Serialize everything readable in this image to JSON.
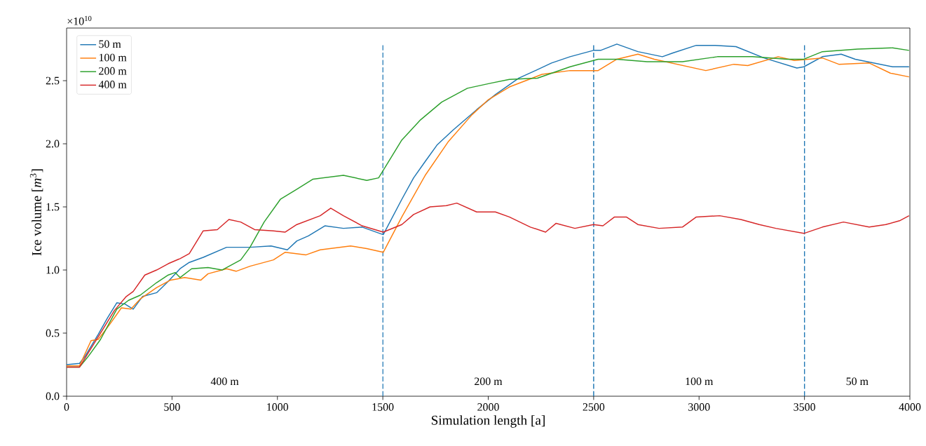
{
  "chart_data": {
    "type": "line",
    "xlabel": "Simulation length [a]",
    "ylabel": "Ice volume [*m*$^{3}$]",
    "xlim": [
      0,
      4000
    ],
    "ylim": [
      0,
      2.917
    ],
    "xticks": [
      0,
      500,
      1000,
      1500,
      2000,
      2500,
      3000,
      3500,
      4000
    ],
    "yticks": [
      {
        "value": 0,
        "label": "0.0"
      },
      {
        "value": 0.5,
        "label": "0.5"
      },
      {
        "value": 1.0,
        "label": "1.0"
      },
      {
        "value": 1.5,
        "label": "1.5"
      },
      {
        "value": 2.0,
        "label": "2.0"
      },
      {
        "value": 2.5,
        "label": "2.5"
      }
    ],
    "legend": "top left",
    "grid": false,
    "marker": "none",
    "line_style": "solid",
    "series": [
      {
        "name": "50 m",
        "color": "#1f77b4",
        "x": [
          0,
          61,
          89,
          150,
          194,
          238,
          277,
          316,
          360,
          427,
          482,
          538,
          582,
          648,
          759,
          870,
          970,
          1047,
          1092,
          1147,
          1225,
          1313,
          1402,
          1502,
          1590,
          1646,
          1701,
          1757,
          1834,
          1945,
          2034,
          2145,
          2211,
          2300,
          2388,
          2499,
          2533,
          2610,
          2710,
          2826,
          2876,
          2987,
          3076,
          3175,
          3308,
          3464,
          3497,
          3585,
          3674,
          3741,
          3918,
          3996
        ],
        "values": [
          0.25,
          0.26,
          0.32,
          0.49,
          0.62,
          0.74,
          0.73,
          0.69,
          0.79,
          0.82,
          0.91,
          1.01,
          1.06,
          1.1,
          1.18,
          1.18,
          1.19,
          1.16,
          1.23,
          1.27,
          1.35,
          1.33,
          1.34,
          1.28,
          1.56,
          1.73,
          1.86,
          1.99,
          2.11,
          2.27,
          2.39,
          2.52,
          2.57,
          2.64,
          2.69,
          2.74,
          2.74,
          2.79,
          2.73,
          2.69,
          2.72,
          2.78,
          2.78,
          2.77,
          2.68,
          2.6,
          2.61,
          2.69,
          2.71,
          2.67,
          2.61,
          2.61
        ]
      },
      {
        "name": "100 m",
        "color": "#ff7f0e",
        "x": [
          0,
          61,
          116,
          150,
          205,
          260,
          305,
          349,
          427,
          493,
          560,
          637,
          671,
          759,
          804,
          870,
          981,
          1036,
          1136,
          1203,
          1347,
          1424,
          1502,
          1590,
          1701,
          1812,
          1923,
          2001,
          2100,
          2255,
          2388,
          2521,
          2610,
          2710,
          2788,
          3032,
          3165,
          3231,
          3375,
          3452,
          3585,
          3663,
          3807,
          3907,
          3996
        ],
        "values": [
          0.24,
          0.24,
          0.44,
          0.45,
          0.57,
          0.7,
          0.69,
          0.77,
          0.86,
          0.92,
          0.94,
          0.92,
          0.97,
          1.01,
          0.99,
          1.03,
          1.08,
          1.14,
          1.12,
          1.16,
          1.19,
          1.17,
          1.14,
          1.42,
          1.75,
          2.02,
          2.23,
          2.35,
          2.45,
          2.55,
          2.58,
          2.58,
          2.67,
          2.71,
          2.67,
          2.58,
          2.63,
          2.62,
          2.69,
          2.66,
          2.68,
          2.63,
          2.64,
          2.56,
          2.53
        ]
      },
      {
        "name": "200 m",
        "color": "#2ca02c",
        "x": [
          0,
          61,
          105,
          161,
          238,
          294,
          349,
          427,
          482,
          515,
          538,
          593,
          671,
          737,
          826,
          870,
          937,
          1014,
          1092,
          1169,
          1313,
          1424,
          1480,
          1502,
          1590,
          1679,
          1779,
          1901,
          2012,
          2100,
          2233,
          2388,
          2521,
          2610,
          2754,
          2921,
          3087,
          3253,
          3419,
          3497,
          3585,
          3752,
          3918,
          3996
        ],
        "values": [
          0.23,
          0.23,
          0.32,
          0.45,
          0.69,
          0.76,
          0.8,
          0.9,
          0.96,
          0.98,
          0.94,
          1.01,
          1.02,
          1.0,
          1.08,
          1.18,
          1.38,
          1.56,
          1.64,
          1.72,
          1.75,
          1.71,
          1.73,
          1.79,
          2.03,
          2.19,
          2.33,
          2.44,
          2.48,
          2.51,
          2.52,
          2.61,
          2.67,
          2.67,
          2.65,
          2.65,
          2.69,
          2.69,
          2.67,
          2.67,
          2.73,
          2.75,
          2.76,
          2.74
        ]
      },
      {
        "name": "400 m",
        "color": "#d62728",
        "x": [
          0,
          61,
          172,
          227,
          283,
          316,
          371,
          427,
          482,
          538,
          582,
          648,
          715,
          770,
          826,
          892,
          981,
          1036,
          1092,
          1203,
          1253,
          1313,
          1402,
          1502,
          1590,
          1646,
          1724,
          1801,
          1851,
          1945,
          2034,
          2100,
          2200,
          2272,
          2322,
          2411,
          2499,
          2544,
          2599,
          2655,
          2710,
          2810,
          2921,
          2987,
          3098,
          3198,
          3286,
          3364,
          3497,
          3585,
          3685,
          3807,
          3885,
          3951,
          3996
        ],
        "values": [
          0.23,
          0.23,
          0.53,
          0.68,
          0.79,
          0.83,
          0.96,
          1.0,
          1.05,
          1.09,
          1.13,
          1.31,
          1.32,
          1.4,
          1.38,
          1.32,
          1.31,
          1.3,
          1.36,
          1.43,
          1.49,
          1.43,
          1.35,
          1.3,
          1.36,
          1.44,
          1.5,
          1.51,
          1.53,
          1.46,
          1.46,
          1.42,
          1.34,
          1.3,
          1.37,
          1.33,
          1.36,
          1.35,
          1.42,
          1.42,
          1.36,
          1.33,
          1.34,
          1.42,
          1.43,
          1.4,
          1.36,
          1.33,
          1.29,
          1.34,
          1.38,
          1.34,
          1.36,
          1.39,
          1.43
        ]
      }
    ],
    "ref_lines": [
      {
        "axis": "x",
        "value": 1500,
        "color": "#1f77b4",
        "line_style": "dashed"
      },
      {
        "axis": "x",
        "value": 2500,
        "color": "#1f77b4",
        "line_style": "dashed"
      },
      {
        "axis": "x",
        "value": 3500,
        "color": "#1f77b4",
        "line_style": "dashed"
      }
    ],
    "annotations": [
      "×10$^{10}$",
      "400 m",
      "200 m",
      "100 m",
      "50 m"
    ]
  }
}
